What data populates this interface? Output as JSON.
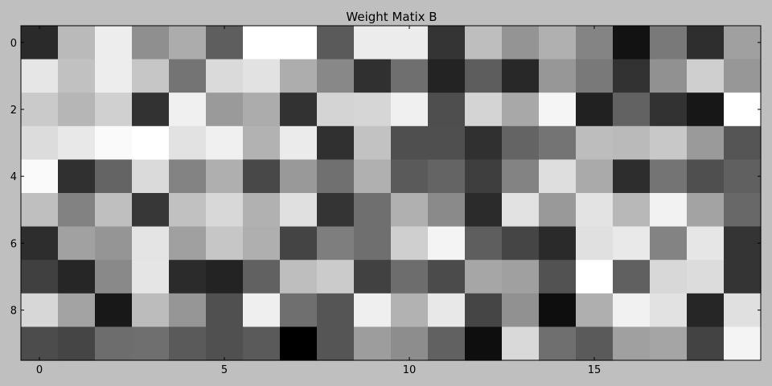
{
  "chart_data": {
    "type": "heatmap",
    "title": "Weight Matix B",
    "colormap": "gray",
    "vmin": 0,
    "vmax": 255,
    "x_ticks": [
      0,
      5,
      10,
      15
    ],
    "y_ticks": [
      0,
      2,
      4,
      6,
      8
    ],
    "xlim": [
      -0.5,
      19.5
    ],
    "ylim": [
      9.5,
      -0.5
    ],
    "background_color": "#bfbfbf",
    "values": [
      [
        42,
        186,
        237,
        143,
        172,
        94,
        255,
        255,
        90,
        236,
        236,
        52,
        190,
        148,
        176,
        132,
        18,
        121,
        46,
        160
      ],
      [
        230,
        193,
        237,
        198,
        116,
        218,
        226,
        173,
        136,
        48,
        111,
        35,
        93,
        40,
        151,
        121,
        50,
        145,
        207,
        151
      ],
      [
        202,
        182,
        208,
        50,
        240,
        154,
        172,
        50,
        212,
        214,
        240,
        78,
        212,
        168,
        245,
        33,
        98,
        50,
        23,
        255
      ],
      [
        220,
        232,
        250,
        255,
        226,
        240,
        178,
        235,
        48,
        194,
        79,
        79,
        48,
        100,
        116,
        189,
        186,
        200,
        154,
        85
      ],
      [
        250,
        48,
        100,
        218,
        131,
        175,
        72,
        153,
        112,
        176,
        90,
        100,
        62,
        131,
        222,
        170,
        45,
        116,
        79,
        96
      ],
      [
        191,
        130,
        191,
        55,
        193,
        216,
        177,
        224,
        52,
        111,
        176,
        138,
        43,
        226,
        153,
        227,
        184,
        242,
        163,
        104
      ],
      [
        45,
        161,
        149,
        228,
        160,
        198,
        175,
        68,
        126,
        111,
        207,
        244,
        94,
        69,
        42,
        224,
        233,
        131,
        230,
        52
      ],
      [
        64,
        38,
        137,
        229,
        43,
        35,
        97,
        190,
        203,
        65,
        109,
        75,
        166,
        160,
        82,
        255,
        96,
        216,
        220,
        52
      ],
      [
        215,
        163,
        24,
        188,
        150,
        80,
        239,
        111,
        85,
        239,
        178,
        232,
        69,
        145,
        14,
        175,
        241,
        226,
        38,
        224
      ],
      [
        76,
        69,
        109,
        111,
        90,
        80,
        90,
        0,
        85,
        157,
        141,
        97,
        14,
        217,
        111,
        90,
        160,
        165,
        67,
        244
      ]
    ]
  }
}
